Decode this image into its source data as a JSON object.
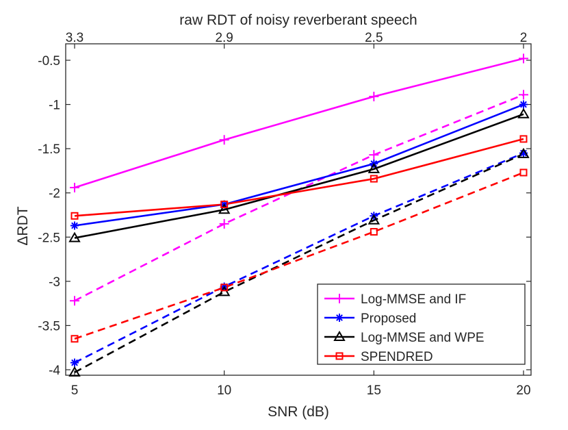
{
  "chart_data": {
    "type": "line",
    "title": "",
    "xlabel": "SNR (dB)",
    "ylabel": "ΔRDT",
    "top_axis_label": "raw RDT of noisy reverberant speech",
    "x": [
      5,
      10,
      15,
      20
    ],
    "xlim": [
      5,
      20
    ],
    "ylim": [
      -4.1,
      -0.4
    ],
    "x_ticks": [
      "5",
      "10",
      "15",
      "20"
    ],
    "y_ticks": [
      -0.5,
      -1,
      -1.5,
      -2,
      -2.5,
      -3,
      -3.5,
      -4
    ],
    "y_tick_labels": [
      "-0.5",
      "-1",
      "-1.5",
      "-2",
      "-2.5",
      "-3",
      "-3.5",
      "-4"
    ],
    "top_ticks": [
      "3.3",
      "2.9",
      "2.5",
      "2"
    ],
    "grid": false,
    "legend_position": "bottom-right",
    "series": [
      {
        "name": "Log-MMSE and IF",
        "color": "#ff00ff",
        "marker": "plus",
        "style": "solid",
        "values": [
          -1.94,
          -1.4,
          -0.91,
          -0.48
        ]
      },
      {
        "name": "Log-MMSE and IF",
        "color": "#ff00ff",
        "marker": "plus",
        "style": "dashed",
        "values": [
          -3.22,
          -2.35,
          -1.57,
          -0.89
        ]
      },
      {
        "name": "Proposed",
        "color": "#0000ff",
        "marker": "asterisk",
        "style": "solid",
        "values": [
          -2.37,
          -2.13,
          -1.67,
          -1.0
        ]
      },
      {
        "name": "Proposed",
        "color": "#0000ff",
        "marker": "asterisk",
        "style": "dashed",
        "values": [
          -3.92,
          -3.06,
          -2.26,
          -1.55
        ]
      },
      {
        "name": "Log-MMSE and WPE",
        "color": "#000000",
        "marker": "triangle",
        "style": "solid",
        "values": [
          -2.51,
          -2.19,
          -1.73,
          -1.11
        ]
      },
      {
        "name": "Log-MMSE and WPE",
        "color": "#000000",
        "marker": "triangle",
        "style": "dashed",
        "values": [
          -4.03,
          -3.12,
          -2.31,
          -1.56
        ]
      },
      {
        "name": "SPENDRED",
        "color": "#ff0000",
        "marker": "square",
        "style": "solid",
        "values": [
          -2.26,
          -2.13,
          -1.84,
          -1.39
        ]
      },
      {
        "name": "SPENDRED",
        "color": "#ff0000",
        "marker": "square",
        "style": "dashed",
        "values": [
          -3.65,
          -3.07,
          -2.44,
          -1.77
        ]
      }
    ],
    "legend": [
      {
        "label": "Log-MMSE and IF",
        "color": "#ff00ff",
        "marker": "plus"
      },
      {
        "label": "Proposed",
        "color": "#0000ff",
        "marker": "asterisk"
      },
      {
        "label": "Log-MMSE and WPE",
        "color": "#000000",
        "marker": "triangle"
      },
      {
        "label": "SPENDRED",
        "color": "#ff0000",
        "marker": "square"
      }
    ]
  }
}
